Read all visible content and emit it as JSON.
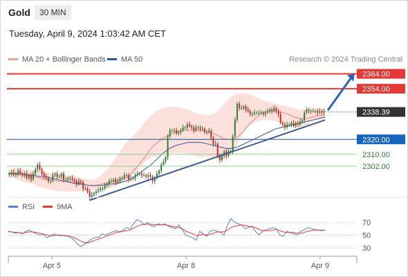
{
  "header": {
    "title": "Gold",
    "interval": "30 MIN",
    "datetime": "Tuesday, April 9, 2024 1:03:42 AM CET"
  },
  "legend": {
    "ma20": "MA 20 + Bollinger Bands",
    "ma50": "MA 50",
    "credit": "Research © 2024 Trading Central"
  },
  "rsi_legend": {
    "rsi": "RSI",
    "ma": "9MA"
  },
  "colors": {
    "up": "#2e7d32",
    "down": "#c62828",
    "resistance": "#e53935",
    "support": "#1a4f8a",
    "minor": "#2e7d32",
    "band_fill": "#fbd5d0",
    "ma20": "#f08080",
    "ma50": "#2b5797",
    "trend": "#3a5a96",
    "arrow": "#2a62b0",
    "rsi": "#5b7fd1",
    "rsi_ma": "#e53935",
    "price_tag": "#333333"
  },
  "chart_data": [
    {
      "type": "candlestick",
      "title": "Gold",
      "x_labels": [
        "Apr 5",
        "Apr 8",
        "Apr 9"
      ],
      "ylim": [
        2282,
        2368
      ],
      "levels": [
        {
          "value": 2364.0,
          "label": "2364.00",
          "kind": "resistance"
        },
        {
          "value": 2354.0,
          "label": "2354.00",
          "kind": "resistance"
        },
        {
          "value": 2338.39,
          "label": "2338.39",
          "kind": "current"
        },
        {
          "value": 2320.0,
          "label": "2320.00",
          "kind": "pivot"
        },
        {
          "value": 2310.0,
          "label": "2310.00",
          "kind": "support"
        },
        {
          "value": 2302.0,
          "label": "2302.00",
          "kind": "support"
        }
      ],
      "close_series": [
        2297,
        2298,
        2296,
        2297,
        2299,
        2297,
        2296,
        2297,
        2294,
        2296,
        2293,
        2297,
        2300,
        2303,
        2300,
        2297,
        2295,
        2294,
        2292,
        2292,
        2296,
        2297,
        2295,
        2295,
        2297,
        2293,
        2293,
        2294,
        2294,
        2293,
        2292,
        2290,
        2292,
        2291,
        2287,
        2287,
        2285,
        2281,
        2283,
        2284,
        2285,
        2286,
        2287,
        2287,
        2289,
        2290,
        2292,
        2292,
        2293,
        2291,
        2292,
        2294,
        2294,
        2296,
        2296,
        2293,
        2294,
        2294,
        2296,
        2297,
        2297,
        2296,
        2296,
        2295,
        2296,
        2295,
        2292,
        2294,
        2297,
        2299,
        2303,
        2305,
        2308,
        2322,
        2326,
        2326,
        2326,
        2324,
        2325,
        2326,
        2328,
        2328,
        2330,
        2329,
        2328,
        2326,
        2328,
        2328,
        2327,
        2327,
        2325,
        2325,
        2326,
        2321,
        2317,
        2317,
        2309,
        2306,
        2309,
        2312,
        2309,
        2312,
        2312,
        2322,
        2333,
        2344,
        2341,
        2341,
        2342,
        2340,
        2339,
        2337,
        2337,
        2338,
        2338,
        2338,
        2338,
        2337,
        2338,
        2339,
        2340,
        2339,
        2341,
        2339,
        2337,
        2331,
        2330,
        2328,
        2330,
        2330,
        2331,
        2329,
        2331,
        2330,
        2332,
        2333,
        2338,
        2340,
        2339,
        2339,
        2339,
        2339,
        2338,
        2339,
        2338,
        2339
      ],
      "bollinger": {
        "ma20": [
          2297,
          2297,
          2296,
          2296,
          2295,
          2294,
          2293,
          2293,
          2292,
          2292,
          2292,
          2291,
          2290,
          2289,
          2289,
          2290,
          2291,
          2292,
          2293,
          2294,
          2298,
          2303,
          2308,
          2314,
          2318,
          2321,
          2323,
          2325,
          2326,
          2326,
          2326,
          2326,
          2325,
          2324,
          2322,
          2320,
          2320,
          2322,
          2326,
          2331,
          2335,
          2338,
          2339,
          2339,
          2338,
          2337,
          2335,
          2334,
          2334,
          2335,
          2336,
          2336
        ],
        "upper": [
          2300,
          2301,
          2300,
          2300,
          2299,
          2299,
          2298,
          2297,
          2296,
          2296,
          2296,
          2295,
          2294,
          2293,
          2293,
          2296,
          2300,
          2306,
          2312,
          2318,
          2322,
          2326,
          2332,
          2336,
          2339,
          2341,
          2342,
          2342,
          2341,
          2340,
          2338,
          2337,
          2336,
          2337,
          2340,
          2345,
          2349,
          2351,
          2351,
          2350,
          2348,
          2346,
          2345,
          2344,
          2343,
          2342,
          2341,
          2340,
          2340,
          2340,
          2341,
          2341
        ],
        "lower": [
          2294,
          2294,
          2292,
          2291,
          2290,
          2288,
          2287,
          2286,
          2285,
          2285,
          2285,
          2285,
          2285,
          2285,
          2286,
          2286,
          2287,
          2288,
          2290,
          2292,
          2296,
          2300,
          2305,
          2308,
          2309,
          2310,
          2311,
          2311,
          2311,
          2310,
          2309,
          2308,
          2308,
          2308,
          2307,
          2306,
          2310,
          2318,
          2326,
          2330,
          2332,
          2333,
          2333,
          2332,
          2331,
          2330,
          2329,
          2328,
          2329,
          2332,
          2333,
          2334
        ]
      },
      "ma50": [
        2297,
        2297,
        2297,
        2296,
        2296,
        2295,
        2295,
        2294,
        2293,
        2292,
        2291,
        2290,
        2290,
        2289,
        2289,
        2289,
        2290,
        2290,
        2291,
        2292,
        2294,
        2297,
        2300,
        2303,
        2307,
        2311,
        2314,
        2316,
        2317,
        2318,
        2318,
        2318,
        2317,
        2316,
        2315,
        2314,
        2314,
        2315,
        2317,
        2319,
        2321,
        2323,
        2325,
        2327,
        2328,
        2329,
        2330,
        2331,
        2332,
        2333,
        2334,
        2335
      ],
      "trendline": {
        "start": {
          "label": "Apr 5 low",
          "value": 2281
        },
        "end": {
          "value": 2333
        }
      },
      "arrow_target": 2364.0
    },
    {
      "type": "line",
      "title": "RSI",
      "ylim": [
        20,
        80
      ],
      "ticks": [
        "70",
        "50",
        "30"
      ],
      "series": [
        {
          "name": "RSI",
          "values": [
            56,
            55,
            53,
            54,
            52,
            56,
            58,
            55,
            52,
            50,
            51,
            46,
            48,
            52,
            50,
            49,
            50,
            48,
            46,
            42,
            35,
            32,
            36,
            40,
            44,
            46,
            47,
            52,
            50,
            53,
            55,
            57,
            55,
            58,
            62,
            60,
            68,
            74,
            72,
            66,
            70,
            65,
            63,
            68,
            66,
            68,
            64,
            62,
            60,
            66,
            58,
            50,
            48,
            46,
            42,
            56,
            52,
            48,
            56,
            58,
            56,
            54,
            50,
            66,
            76,
            70,
            68,
            66,
            60,
            62,
            64,
            56,
            50,
            56,
            58,
            60,
            62,
            60,
            50,
            48,
            56,
            54,
            52,
            50,
            56,
            58,
            62,
            60,
            59,
            58,
            57,
            58
          ]
        },
        {
          "name": "9MA",
          "values": [
            55,
            55,
            54,
            54,
            53,
            54,
            55,
            55,
            54,
            53,
            52,
            50,
            49,
            49,
            50,
            50,
            49,
            49,
            48,
            46,
            43,
            40,
            38,
            38,
            40,
            42,
            44,
            46,
            48,
            50,
            52,
            54,
            55,
            56,
            57,
            58,
            61,
            64,
            66,
            67,
            67,
            67,
            66,
            66,
            66,
            66,
            65,
            64,
            63,
            62,
            60,
            56,
            54,
            52,
            49,
            50,
            51,
            50,
            51,
            53,
            55,
            55,
            55,
            58,
            62,
            64,
            65,
            66,
            65,
            64,
            63,
            62,
            59,
            57,
            57,
            57,
            58,
            59,
            57,
            55,
            54,
            54,
            54,
            53,
            53,
            54,
            56,
            57,
            58,
            58,
            58,
            58
          ]
        }
      ]
    }
  ]
}
